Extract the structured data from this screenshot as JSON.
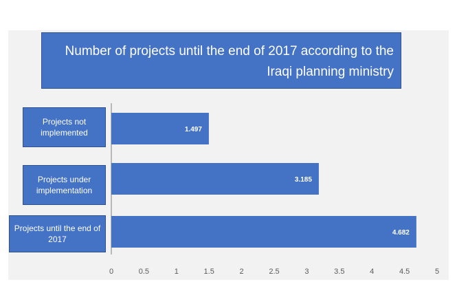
{
  "chart_data": {
    "type": "bar",
    "orientation": "horizontal",
    "title": "Number  of projects until the end of 2017 according to the Iraqi planning ministry",
    "categories": [
      "Projects not implemented",
      "Projects under implementation",
      "Projects until the end of 2017"
    ],
    "values": [
      1.497,
      3.185,
      4.682
    ],
    "data_labels": [
      "1.497",
      "3.185",
      "4.682"
    ],
    "xlim": [
      0,
      5
    ],
    "xticks": [
      "0",
      "0.5",
      "1",
      "1.5",
      "2",
      "2.5",
      "3",
      "3.5",
      "4",
      "4.5",
      "5"
    ],
    "xlabel": "",
    "ylabel": "",
    "grid": false,
    "colors": {
      "bar": "#4472c4",
      "background": "#f2f2f2",
      "box": "#4472c4"
    }
  }
}
